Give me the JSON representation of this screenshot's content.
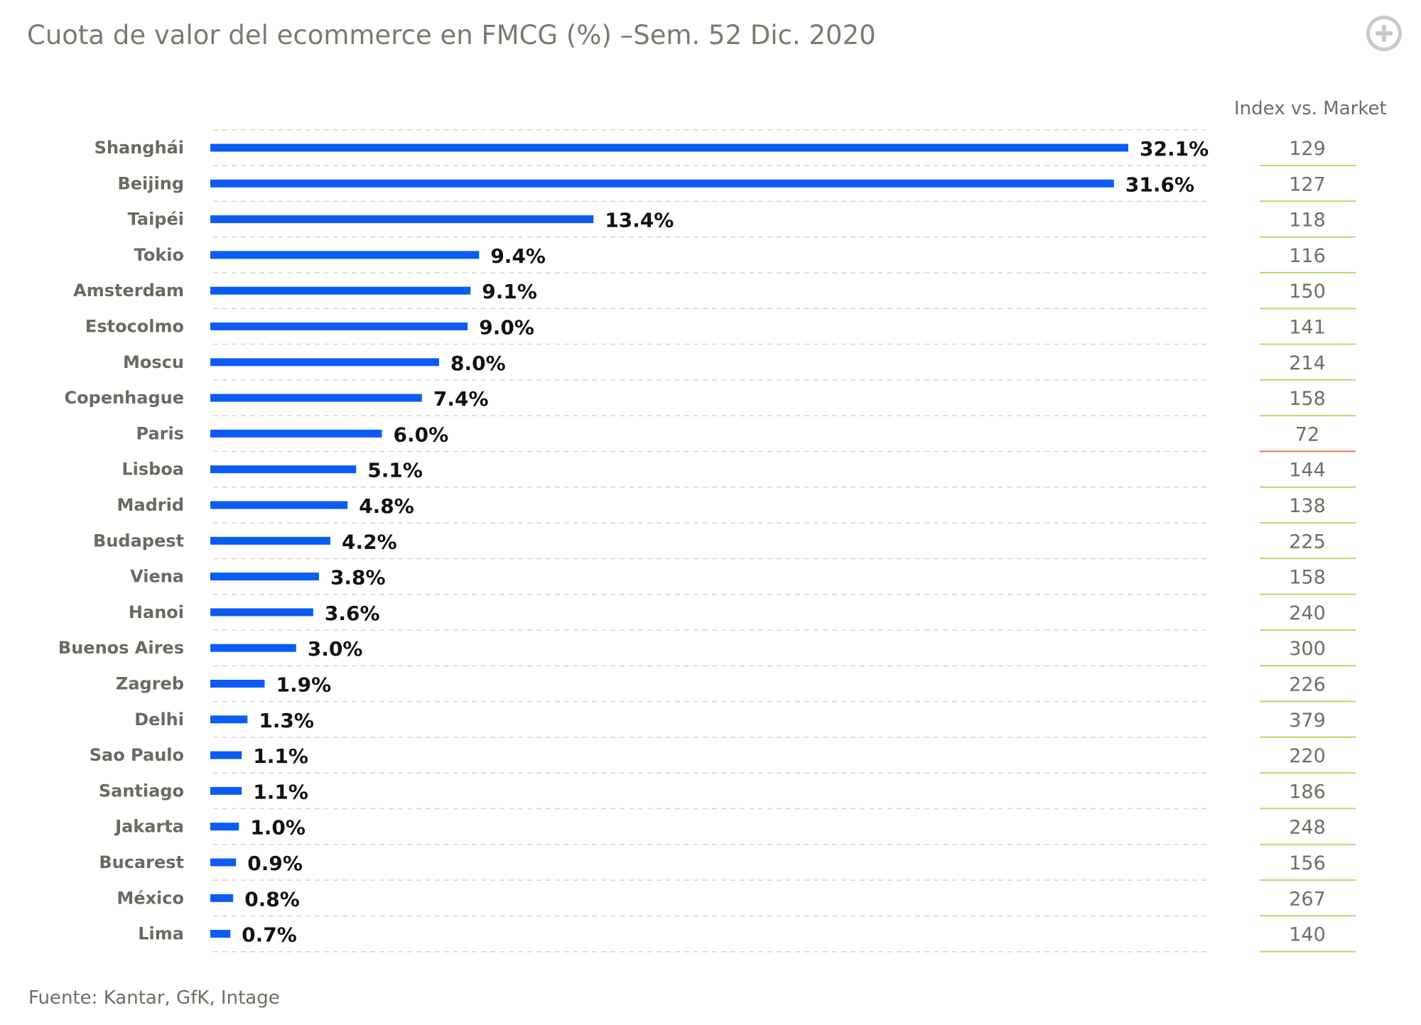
{
  "title": "Cuota de valor del ecommerce en FMCG (%) –Sem. 52 Dic. 2020",
  "source": "Fuente: Kantar, GfK, Intage",
  "plus_icon": "plus-circle-icon",
  "colors": {
    "bar": "#0a5cf5",
    "index_line_normal": "#b5d96b",
    "index_line_low": "#e8734a",
    "title": "#7c7a6f"
  },
  "chart_data": {
    "type": "bar",
    "orientation": "horizontal",
    "title": "Cuota de valor del ecommerce en FMCG (%) –Sem. 52 Dic. 2020",
    "xlabel": "",
    "ylabel": "",
    "xlim": [
      0,
      32.1
    ],
    "grid": "dashed horizontal separators",
    "categories": [
      "Shanghái",
      "Beijing",
      "Taipéi",
      "Tokio",
      "Amsterdam",
      "Estocolmo",
      "Moscu",
      "Copenhague",
      "Paris",
      "Lisboa",
      "Madrid",
      "Budapest",
      "Viena",
      "Hanoi",
      "Buenos Aires",
      "Zagreb",
      "Delhi",
      "Sao Paulo",
      "Santiago",
      "Jakarta",
      "Bucarest",
      "México",
      "Lima"
    ],
    "values": [
      32.1,
      31.6,
      13.4,
      9.4,
      9.1,
      9.0,
      8.0,
      7.4,
      6.0,
      5.1,
      4.8,
      4.2,
      3.8,
      3.6,
      3.0,
      1.9,
      1.3,
      1.1,
      1.1,
      1.0,
      0.9,
      0.8,
      0.7
    ],
    "labels": [
      "32.1%",
      "31.6%",
      "13.4%",
      "9.4%",
      "9.1%",
      "9.0%",
      "8.0%",
      "7.4%",
      "6.0%",
      "5.1%",
      "4.8%",
      "4.2%",
      "3.8%",
      "3.6%",
      "3.0%",
      "1.9%",
      "1.3%",
      "1.1%",
      "1.1%",
      "1.0%",
      "0.9%",
      "0.8%",
      "0.7%"
    ],
    "index_header": "Index vs. Market",
    "index_values": [
      129,
      127,
      118,
      116,
      150,
      141,
      214,
      158,
      72,
      144,
      138,
      225,
      158,
      240,
      300,
      226,
      379,
      220,
      186,
      248,
      156,
      267,
      140
    ]
  }
}
